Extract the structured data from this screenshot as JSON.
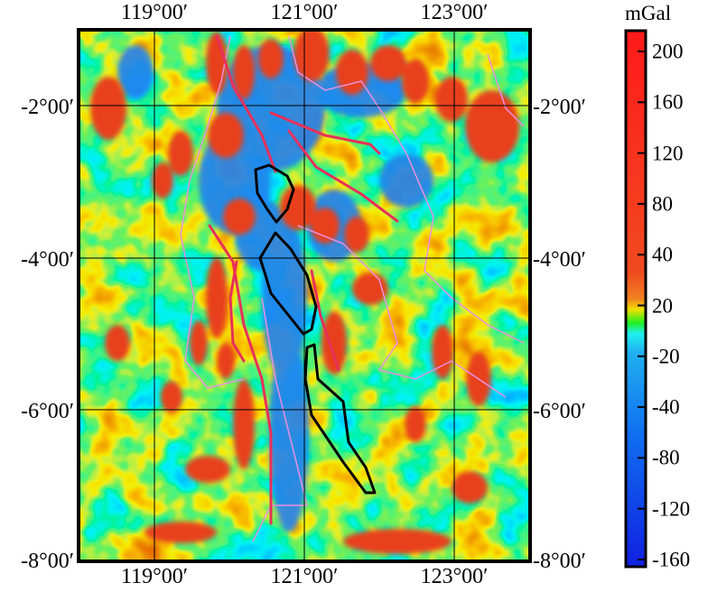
{
  "map": {
    "longitude_labels": [
      "119°00′",
      "121°00′",
      "123°00′"
    ],
    "latitude_labels": [
      "-2°00′",
      "-4°00′",
      "-6°00′",
      "-8°00′"
    ],
    "colors": {
      "fault_lines": "#e8305a",
      "outlines": "#000000",
      "coastline": "#e890e0"
    }
  },
  "colorbar": {
    "unit": "mGal",
    "ticks": [
      "200",
      "160",
      "120",
      "80",
      "40",
      "20",
      "-20",
      "-40",
      "-80",
      "-120",
      "-160"
    ],
    "colors": [
      "#ff1a1a",
      "#f03a20",
      "#f06020",
      "#f0a020",
      "#f0f000",
      "#20f020",
      "#20f0f0",
      "#20a0f0",
      "#1060f0",
      "#1030f0",
      "#1020e0"
    ]
  }
}
